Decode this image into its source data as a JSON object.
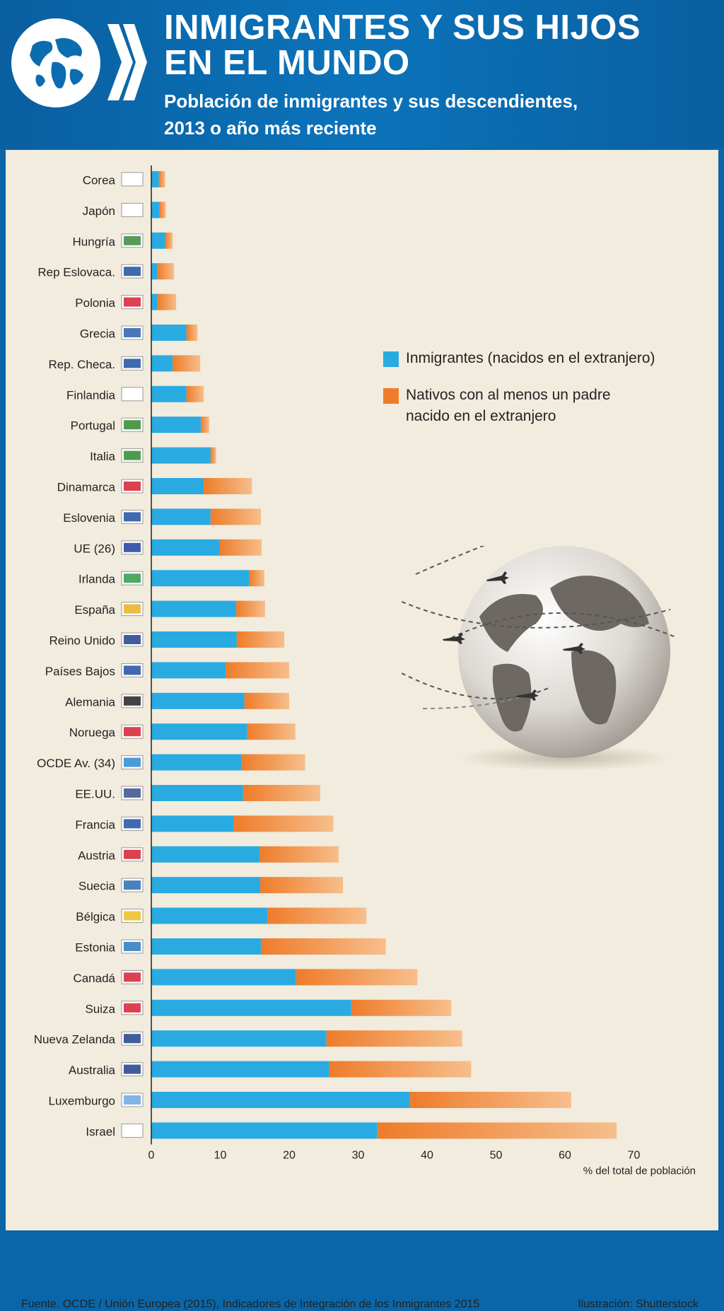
{
  "header": {
    "title_line1": "INMIGRANTES Y SUS HIJOS",
    "title_line2": "EN EL MUNDO",
    "subtitle_line1": "Población de inmigrantes y sus descendientes,",
    "subtitle_line2": "2013 o año más reciente"
  },
  "legend": {
    "immigrants": "Inmigrantes (nacidos en el extranjero)",
    "natives_line1": "Nativos con al menos un padre",
    "natives_line2": "nacido en el extranjero"
  },
  "colors": {
    "immigrants": "#29abe2",
    "natives": "#ee7c2a",
    "natives_light": "#f7be8c",
    "header": "#0b6db0",
    "panel": "#f1ecdd"
  },
  "footer": {
    "source": "Fuente. OCDE / Unión Europea (2015), Indicadores de Integración de los Inmigrantes 2015",
    "credit": "Ilustración: Shutterstock"
  },
  "chart_data": {
    "type": "bar",
    "orientation": "horizontal",
    "stacked": true,
    "xlabel": "% del total de población",
    "xlim": [
      0,
      70
    ],
    "xticks": [
      "0",
      "10",
      "20",
      "30",
      "40",
      "50",
      "60",
      "70"
    ],
    "grid": false,
    "legend_position": "top-right",
    "categories": [
      "Corea",
      "Japón",
      "Hungría",
      "Rep Eslovaca.",
      "Polonia",
      "Grecia",
      "Rep. Checa.",
      "Finlandia",
      "Portugal",
      "Italia",
      "Dinamarca",
      "Eslovenia",
      "UE (26)",
      "Irlanda",
      "España",
      "Reino Unido",
      "Países Bajos",
      "Alemania",
      "Noruega",
      "OCDE Av. (34)",
      "EE.UU.",
      "Francia",
      "Austria",
      "Suecia",
      "Bélgica",
      "Estonia",
      "Canadá",
      "Suiza",
      "Nueva Zelanda",
      "Australia",
      "Luxemburgo",
      "Israel"
    ],
    "flags": [
      "south-korea-flag-icon",
      "japan-flag-icon",
      "hungary-flag-icon",
      "slovakia-flag-icon",
      "poland-flag-icon",
      "greece-flag-icon",
      "czech-flag-icon",
      "finland-flag-icon",
      "portugal-flag-icon",
      "italy-flag-icon",
      "denmark-flag-icon",
      "slovenia-flag-icon",
      "eu-flag-icon",
      "ireland-flag-icon",
      "spain-flag-icon",
      "uk-flag-icon",
      "netherlands-flag-icon",
      "germany-flag-icon",
      "norway-flag-icon",
      "oecd-logo-icon",
      "usa-flag-icon",
      "france-flag-icon",
      "austria-flag-icon",
      "sweden-flag-icon",
      "belgium-flag-icon",
      "estonia-flag-icon",
      "canada-flag-icon",
      "switzerland-flag-icon",
      "new-zealand-flag-icon",
      "australia-flag-icon",
      "luxembourg-flag-icon",
      "israel-flag-icon"
    ],
    "series": [
      {
        "name": "Inmigrantes (nacidos en el extranjero)",
        "values": [
          1.1,
          1.2,
          2.0,
          0.9,
          0.9,
          5.1,
          3.1,
          5.1,
          7.2,
          8.6,
          7.6,
          8.6,
          9.9,
          14.2,
          12.3,
          12.4,
          10.8,
          13.5,
          13.9,
          13.1,
          13.3,
          11.9,
          15.7,
          15.8,
          16.9,
          15.9,
          21.0,
          29.0,
          25.4,
          25.8,
          37.5,
          32.8
        ]
      },
      {
        "name": "Nativos con al menos un padre nacido en el extranjero",
        "values": [
          0.9,
          0.9,
          1.1,
          2.4,
          2.7,
          1.6,
          4.0,
          2.5,
          1.2,
          0.8,
          7.0,
          7.3,
          6.1,
          2.2,
          4.2,
          6.9,
          9.2,
          6.5,
          7.0,
          9.2,
          11.2,
          14.5,
          11.5,
          12.0,
          14.3,
          18.1,
          17.6,
          14.5,
          19.7,
          20.6,
          23.4,
          34.7
        ]
      }
    ]
  }
}
